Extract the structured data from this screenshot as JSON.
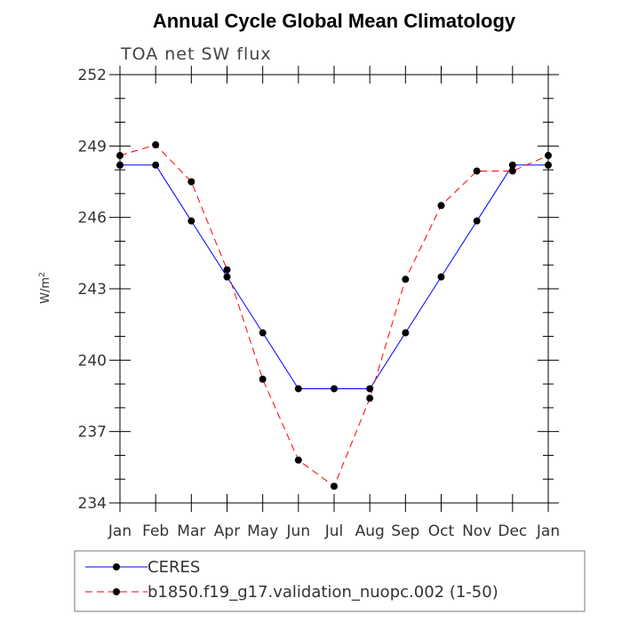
{
  "chart_data": {
    "type": "line",
    "title": "Annual Cycle Global Mean Climatology",
    "subtitle": "TOA net SW flux",
    "ylabel": "W/m",
    "ylabel_sup": "2",
    "ylim": [
      234,
      252
    ],
    "yticks": [
      "234",
      "237",
      "240",
      "243",
      "246",
      "249",
      "252"
    ],
    "categories": [
      "Jan",
      "Feb",
      "Mar",
      "Apr",
      "May",
      "Jun",
      "Jul",
      "Aug",
      "Sep",
      "Oct",
      "Nov",
      "Dec",
      "Jan"
    ],
    "series": [
      {
        "name": "CERES",
        "color": "#0000ff",
        "dash": "solid",
        "values": [
          248.2,
          248.2,
          245.85,
          243.5,
          241.15,
          238.8,
          238.8,
          238.8,
          241.15,
          243.5,
          245.85,
          248.2,
          248.2
        ]
      },
      {
        "name": "b1850.f19_g17.validation_nuopc.002 (1-50)",
        "color": "#ff0000",
        "dash": "dashed",
        "values": [
          248.6,
          249.05,
          247.5,
          243.8,
          239.2,
          235.8,
          234.7,
          238.4,
          243.4,
          246.5,
          247.95,
          247.95,
          248.6
        ]
      }
    ],
    "legend_position": "bottom"
  }
}
